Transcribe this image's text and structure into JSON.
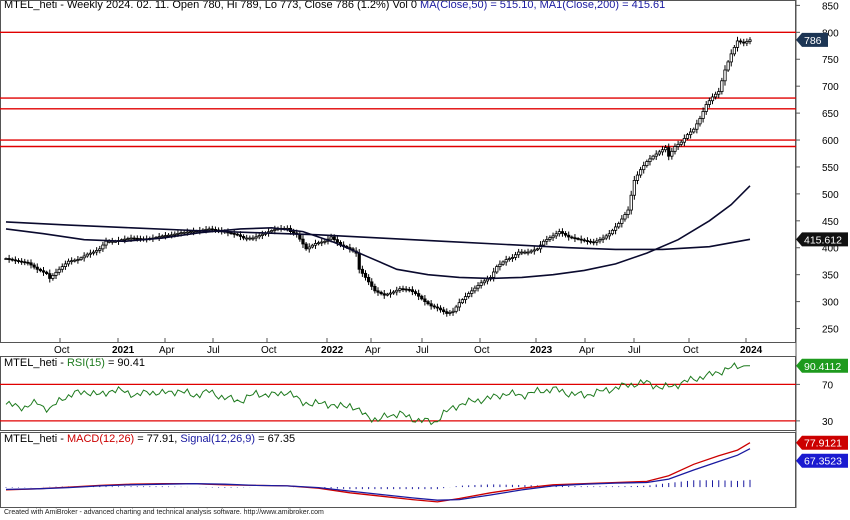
{
  "header": {
    "symbol": "MTEL_heti",
    "info": " - Weekly 2024. 02. 11. Open 780, Hi 789, Lo 773, Close 786 (1.2%) Vol 0 ",
    "ma50": "MA(Close,50) = 515.10,",
    "ma200": " MA1(Close,200) = 415.61"
  },
  "rsi_header": {
    "symbol": "MTEL_heti",
    "sep": " - ",
    "label": "RSI(15)",
    "value": " = 90.41"
  },
  "macd_header": {
    "symbol": "MTEL_heti",
    "sep": " - ",
    "macd_label": "MACD(12,26)",
    "macd_value": " = 77.91, ",
    "signal_label": "Signal(12,26,9)",
    "signal_value": " = 67.35"
  },
  "footer": "Created with AmiBroker - advanced charting and technical analysis software. http://www.amibroker.com",
  "colors": {
    "hline": "#e00000",
    "candle": "#000000",
    "ma": "#0a0a2e",
    "rsi": "#1e7a1e",
    "macd": "#cc0000",
    "signal": "#1a1aa0",
    "hist": "#1a1aa0"
  },
  "chart_data": [
    {
      "type": "candlestick",
      "title": "MTEL_heti - Weekly",
      "ylim": [
        225,
        860
      ],
      "y_ticks": [
        850,
        800,
        750,
        700,
        650,
        600,
        550,
        500,
        450,
        400,
        350,
        300,
        250
      ],
      "x_ticks": [
        "Oct",
        "2021",
        "Apr",
        "Jul",
        "Oct",
        "2022",
        "Apr",
        "Jul",
        "Oct",
        "2023",
        "Apr",
        "Jul",
        "Oct",
        "2024"
      ],
      "bold_x_ticks": [
        "2021",
        "2022",
        "2023",
        "2024"
      ],
      "horizontal_lines": [
        800,
        678,
        658,
        600,
        588
      ],
      "price_badge": "786",
      "ma200_badge": "415.612",
      "price_path": [
        [
          0,
          380
        ],
        [
          4,
          375
        ],
        [
          7,
          372
        ],
        [
          10,
          360
        ],
        [
          13,
          352
        ],
        [
          14,
          343
        ],
        [
          17,
          360
        ],
        [
          20,
          375
        ],
        [
          23,
          378
        ],
        [
          26,
          388
        ],
        [
          28,
          392
        ],
        [
          30,
          398
        ],
        [
          32,
          412
        ],
        [
          35,
          412
        ],
        [
          37,
          415
        ],
        [
          40,
          418
        ],
        [
          44,
          416
        ],
        [
          47,
          418
        ],
        [
          50,
          422
        ],
        [
          53,
          424
        ],
        [
          56,
          428
        ],
        [
          59,
          430
        ],
        [
          62,
          432
        ],
        [
          65,
          435
        ],
        [
          68,
          432
        ],
        [
          71,
          428
        ],
        [
          74,
          424
        ],
        [
          76,
          418
        ],
        [
          79,
          418
        ],
        [
          82,
          425
        ],
        [
          85,
          432
        ],
        [
          87,
          436
        ],
        [
          90,
          436
        ],
        [
          91,
          430
        ],
        [
          93,
          425
        ],
        [
          96,
          398
        ],
        [
          99,
          408
        ],
        [
          102,
          412
        ],
        [
          104,
          420
        ],
        [
          107,
          405
        ],
        [
          110,
          398
        ],
        [
          112,
          390
        ],
        [
          113,
          360
        ],
        [
          115,
          345
        ],
        [
          118,
          320
        ],
        [
          121,
          312
        ],
        [
          124,
          318
        ],
        [
          126,
          324
        ],
        [
          129,
          322
        ],
        [
          131,
          315
        ],
        [
          134,
          300
        ],
        [
          136,
          292
        ],
        [
          138,
          288
        ],
        [
          141,
          278
        ],
        [
          143,
          282
        ],
        [
          145,
          298
        ],
        [
          148,
          315
        ],
        [
          150,
          325
        ],
        [
          152,
          335
        ],
        [
          155,
          345
        ],
        [
          157,
          365
        ],
        [
          160,
          378
        ],
        [
          162,
          382
        ],
        [
          164,
          392
        ],
        [
          167,
          392
        ],
        [
          170,
          398
        ],
        [
          172,
          412
        ],
        [
          175,
          422
        ],
        [
          177,
          430
        ],
        [
          180,
          420
        ],
        [
          183,
          416
        ],
        [
          186,
          412
        ],
        [
          188,
          410
        ],
        [
          191,
          418
        ],
        [
          193,
          426
        ],
        [
          196,
          445
        ],
        [
          199,
          470
        ],
        [
          201,
          525
        ],
        [
          203,
          545
        ],
        [
          205,
          560
        ],
        [
          207,
          570
        ],
        [
          209,
          578
        ],
        [
          211,
          586
        ],
        [
          212,
          570
        ],
        [
          214,
          588
        ],
        [
          216,
          596
        ],
        [
          218,
          610
        ],
        [
          220,
          620
        ],
        [
          222,
          640
        ],
        [
          224,
          666
        ],
        [
          226,
          680
        ],
        [
          228,
          690
        ],
        [
          230,
          730
        ],
        [
          232,
          760
        ],
        [
          234,
          784
        ],
        [
          236,
          780
        ],
        [
          238,
          786
        ]
      ],
      "ma50": [
        [
          0,
          435
        ],
        [
          12,
          426
        ],
        [
          25,
          415
        ],
        [
          38,
          412
        ],
        [
          50,
          418
        ],
        [
          62,
          428
        ],
        [
          75,
          435
        ],
        [
          85,
          437
        ],
        [
          95,
          430
        ],
        [
          105,
          410
        ],
        [
          115,
          385
        ],
        [
          125,
          360
        ],
        [
          135,
          350
        ],
        [
          145,
          345
        ],
        [
          155,
          343
        ],
        [
          165,
          345
        ],
        [
          175,
          350
        ],
        [
          185,
          358
        ],
        [
          195,
          370
        ],
        [
          205,
          390
        ],
        [
          215,
          415
        ],
        [
          225,
          450
        ],
        [
          232,
          480
        ],
        [
          238,
          515
        ]
      ],
      "ma200": [
        [
          0,
          448
        ],
        [
          20,
          442
        ],
        [
          40,
          437
        ],
        [
          60,
          432
        ],
        [
          80,
          428
        ],
        [
          100,
          424
        ],
        [
          120,
          418
        ],
        [
          140,
          412
        ],
        [
          160,
          406
        ],
        [
          180,
          400
        ],
        [
          195,
          397
        ],
        [
          210,
          397
        ],
        [
          225,
          402
        ],
        [
          238,
          415.61
        ]
      ],
      "last_close": 786,
      "ma50_last": 515.1,
      "ma200_last": 415.61
    },
    {
      "type": "line",
      "title": "RSI(15)",
      "ylim": [
        20,
        100
      ],
      "y_ticks": [
        70,
        30
      ],
      "horizontal_lines": [
        70,
        30
      ],
      "badge": "90.4112",
      "series": [
        {
          "name": "RSI(15)",
          "values": [
            [
              0,
              48
            ],
            [
              6,
              45
            ],
            [
              10,
              50
            ],
            [
              14,
              42
            ],
            [
              18,
              55
            ],
            [
              22,
              60
            ],
            [
              26,
              62
            ],
            [
              30,
              58
            ],
            [
              34,
              64
            ],
            [
              38,
              62
            ],
            [
              42,
              58
            ],
            [
              46,
              62
            ],
            [
              50,
              60
            ],
            [
              55,
              63
            ],
            [
              60,
              58
            ],
            [
              65,
              62
            ],
            [
              70,
              55
            ],
            [
              75,
              52
            ],
            [
              80,
              60
            ],
            [
              85,
              58
            ],
            [
              90,
              62
            ],
            [
              94,
              52
            ],
            [
              98,
              48
            ],
            [
              102,
              50
            ],
            [
              106,
              45
            ],
            [
              110,
              48
            ],
            [
              113,
              40
            ],
            [
              116,
              35
            ],
            [
              119,
              30
            ],
            [
              122,
              36
            ],
            [
              126,
              38
            ],
            [
              130,
              32
            ],
            [
              134,
              30
            ],
            [
              137,
              28
            ],
            [
              140,
              38
            ],
            [
              145,
              48
            ],
            [
              150,
              52
            ],
            [
              155,
              55
            ],
            [
              160,
              60
            ],
            [
              165,
              58
            ],
            [
              170,
              62
            ],
            [
              175,
              65
            ],
            [
              180,
              60
            ],
            [
              185,
              58
            ],
            [
              190,
              62
            ],
            [
              195,
              66
            ],
            [
              200,
              70
            ],
            [
              205,
              72
            ],
            [
              210,
              66
            ],
            [
              215,
              70
            ],
            [
              220,
              76
            ],
            [
              225,
              80
            ],
            [
              230,
              86
            ],
            [
              234,
              90
            ],
            [
              238,
              90.41
            ]
          ]
        }
      ]
    },
    {
      "type": "line",
      "title": "MACD(12,26)",
      "ylim": [
        -35,
        95
      ],
      "badges": [
        "77.9121",
        "67.3523"
      ],
      "series": [
        {
          "name": "MACD(12,26)",
          "values": [
            [
              0,
              -5
            ],
            [
              10,
              -3
            ],
            [
              20,
              0
            ],
            [
              30,
              3
            ],
            [
              40,
              5
            ],
            [
              50,
              6
            ],
            [
              60,
              6
            ],
            [
              70,
              4
            ],
            [
              80,
              3
            ],
            [
              90,
              2
            ],
            [
              100,
              -2
            ],
            [
              110,
              -10
            ],
            [
              120,
              -16
            ],
            [
              130,
              -22
            ],
            [
              138,
              -26
            ],
            [
              145,
              -20
            ],
            [
              155,
              -10
            ],
            [
              165,
              -2
            ],
            [
              175,
              4
            ],
            [
              185,
              6
            ],
            [
              195,
              8
            ],
            [
              205,
              10
            ],
            [
              212,
              20
            ],
            [
              220,
              40
            ],
            [
              228,
              55
            ],
            [
              234,
              65
            ],
            [
              238,
              77.91
            ]
          ]
        },
        {
          "name": "Signal(12,26,9)",
          "values": [
            [
              0,
              -4
            ],
            [
              10,
              -3
            ],
            [
              20,
              -1
            ],
            [
              30,
              2
            ],
            [
              40,
              4
            ],
            [
              50,
              5
            ],
            [
              60,
              6
            ],
            [
              70,
              5
            ],
            [
              80,
              3
            ],
            [
              90,
              2
            ],
            [
              100,
              -1
            ],
            [
              110,
              -7
            ],
            [
              120,
              -13
            ],
            [
              130,
              -19
            ],
            [
              138,
              -23
            ],
            [
              145,
              -22
            ],
            [
              155,
              -14
            ],
            [
              165,
              -5
            ],
            [
              175,
              2
            ],
            [
              185,
              5
            ],
            [
              195,
              7
            ],
            [
              205,
              8
            ],
            [
              212,
              14
            ],
            [
              220,
              30
            ],
            [
              228,
              45
            ],
            [
              234,
              56
            ],
            [
              238,
              67.35
            ]
          ]
        }
      ]
    }
  ]
}
